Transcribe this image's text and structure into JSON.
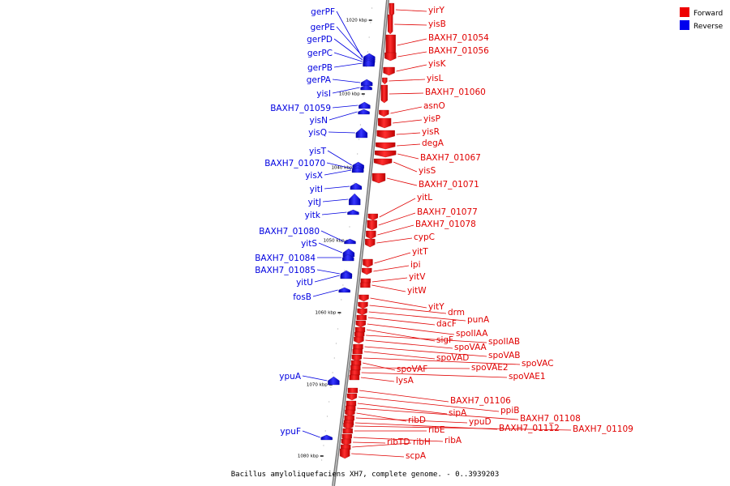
{
  "caption": "Bacillus amyloliquefaciens XH7, complete genome. - 0..3939203",
  "legend": {
    "forward_label": "Forward",
    "reverse_label": "Reverse",
    "forward_color": "#ee0000",
    "reverse_color": "#0000ee"
  },
  "scale": [
    "1020 kbp",
    "1030 kbp",
    "1040 kbp",
    "1050 kbp",
    "1060 kbp",
    "1070 kbp",
    "1080 kbp"
  ],
  "reverse_genes": [
    "gerPF",
    "gerPE",
    "gerPD",
    "gerPC",
    "gerPB",
    "gerPA",
    "yisI",
    "BAXH7_01059",
    "yisN",
    "yisQ",
    "yisT",
    "BAXH7_01070",
    "yisX",
    "yitI",
    "yitJ",
    "yitk",
    "BAXH7_01080",
    "yitS",
    "BAXH7_01084",
    "BAXH7_01085",
    "yitU",
    "fosB",
    "ypuA",
    "ypuF"
  ],
  "forward_genes": [
    "yirY",
    "yisB",
    "BAXH7_01054",
    "BAXH7_01056",
    "yisK",
    "yisL",
    "BAXH7_01060",
    "asnO",
    "yisP",
    "yisR",
    "degA",
    "BAXH7_01067",
    "yisS",
    "BAXH7_01071",
    "yitL",
    "BAXH7_01077",
    "BAXH7_01078",
    "cypC",
    "yitT",
    "ipi",
    "yitV",
    "yitW",
    "yitY",
    "drm",
    "punA",
    "dacF",
    "spoIIAA",
    "sigF",
    "spoIIAB",
    "spoVAA",
    "spoVAB",
    "spoVAD",
    "spoVAC",
    "spoVAF",
    "spoVAE2",
    "spoVAE1",
    "lysA",
    "BAXH7_01106",
    "ppiB",
    "sipA",
    "BAXH7_01108",
    "ribD",
    "ypuD",
    "BAXH7_01112",
    "BAXH7_01109",
    "ribE",
    "ribA",
    "ribTD",
    "ribH",
    "scpA"
  ]
}
